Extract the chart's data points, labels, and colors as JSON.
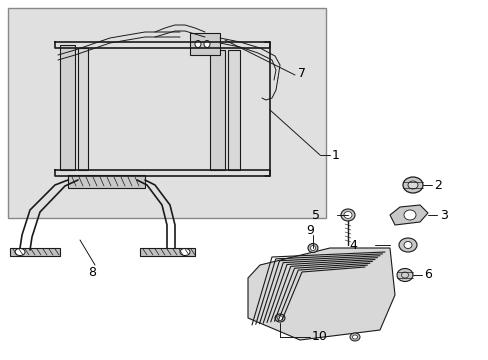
{
  "fig_width": 4.89,
  "fig_height": 3.6,
  "dpi": 100,
  "bg_color": "#e8e8e8",
  "line_color": "#1a1a1a",
  "box_bg": "#dcdcdc",
  "white": "#ffffff",
  "gray_part": "#c8c8c8",
  "label_fs": 9
}
